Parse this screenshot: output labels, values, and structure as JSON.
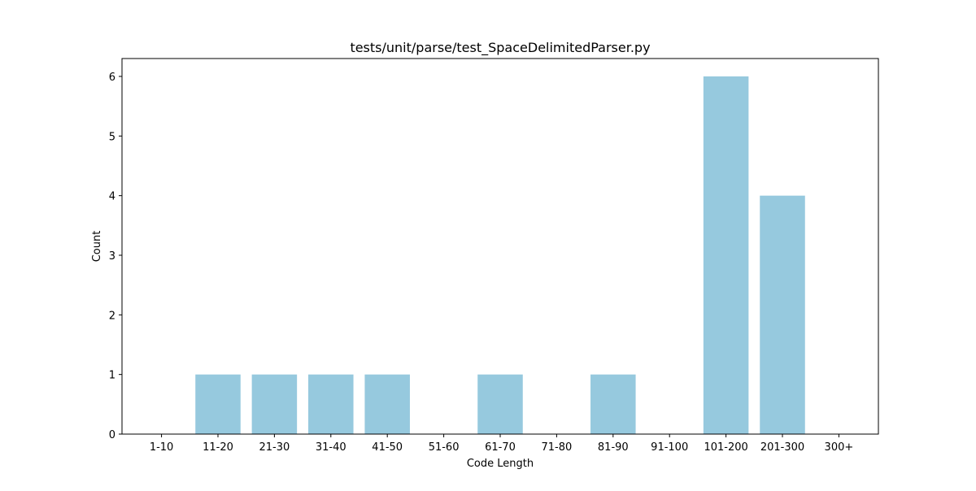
{
  "chart_data": {
    "type": "bar",
    "title": "tests/unit/parse/test_SpaceDelimitedParser.py",
    "xlabel": "Code Length",
    "ylabel": "Count",
    "categories": [
      "1-10",
      "11-20",
      "21-30",
      "31-40",
      "41-50",
      "51-60",
      "61-70",
      "71-80",
      "81-90",
      "91-100",
      "101-200",
      "201-300",
      "300+"
    ],
    "values": [
      0,
      1,
      1,
      1,
      1,
      0,
      1,
      0,
      1,
      0,
      6,
      4,
      0
    ],
    "ylim": [
      0,
      6.3
    ],
    "yticks": [
      0,
      1,
      2,
      3,
      4,
      5,
      6
    ],
    "bar_color": "#96c9de",
    "grid": false,
    "legend": "none"
  }
}
